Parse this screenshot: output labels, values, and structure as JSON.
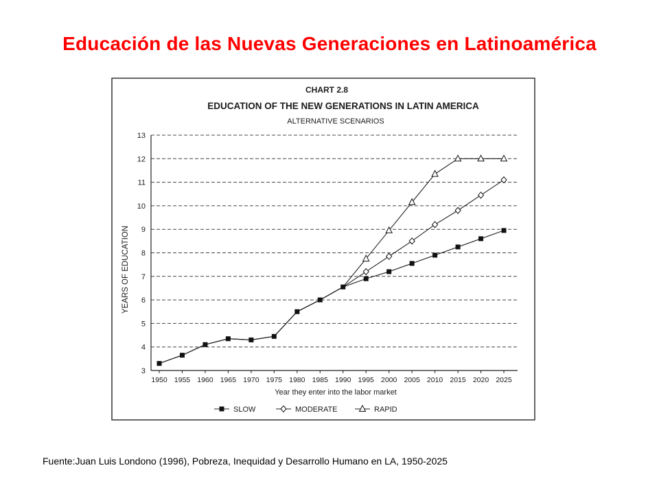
{
  "slide": {
    "title": "Educación de las Nuevas Generaciones en Latinoamérica",
    "source": "Fuente:Juan Luis Londono (1996), Pobreza, Inequidad y Desarrollo Humano en LA, 1950-2025"
  },
  "chart_data": {
    "type": "line",
    "chart_label": "CHART 2.8",
    "title": "EDUCATION OF THE NEW GENERATIONS IN LATIN AMERICA",
    "subtitle": "ALTERNATIVE SCENARIOS",
    "xlabel": "Year they enter into the labor market",
    "ylabel": "YEARS OF EDUCATION",
    "ylim": [
      3,
      13
    ],
    "yticks": [
      3,
      4,
      5,
      6,
      7,
      8,
      9,
      10,
      11,
      12,
      13
    ],
    "x": [
      1950,
      1955,
      1960,
      1965,
      1970,
      1975,
      1980,
      1985,
      1990,
      1995,
      2000,
      2005,
      2010,
      2015,
      2020,
      2025
    ],
    "grid": "dashed horizontal",
    "legend_position": "bottom",
    "series": [
      {
        "name": "SLOW",
        "marker": "filled-square",
        "values": [
          3.3,
          3.65,
          4.1,
          4.35,
          4.3,
          4.45,
          5.5,
          6.0,
          6.55,
          6.9,
          7.2,
          7.55,
          7.9,
          8.25,
          8.6,
          8.95
        ]
      },
      {
        "name": "MODERATE",
        "marker": "diamond",
        "values": [
          3.3,
          3.65,
          4.1,
          4.35,
          4.3,
          4.45,
          5.5,
          6.0,
          6.55,
          7.2,
          7.85,
          8.5,
          9.2,
          9.8,
          10.45,
          11.1
        ]
      },
      {
        "name": "RAPID",
        "marker": "triangle",
        "values": [
          3.3,
          3.65,
          4.1,
          4.35,
          4.3,
          4.45,
          5.5,
          6.0,
          6.55,
          7.75,
          8.95,
          10.15,
          11.35,
          12.0,
          12.0,
          12.0
        ]
      }
    ]
  }
}
